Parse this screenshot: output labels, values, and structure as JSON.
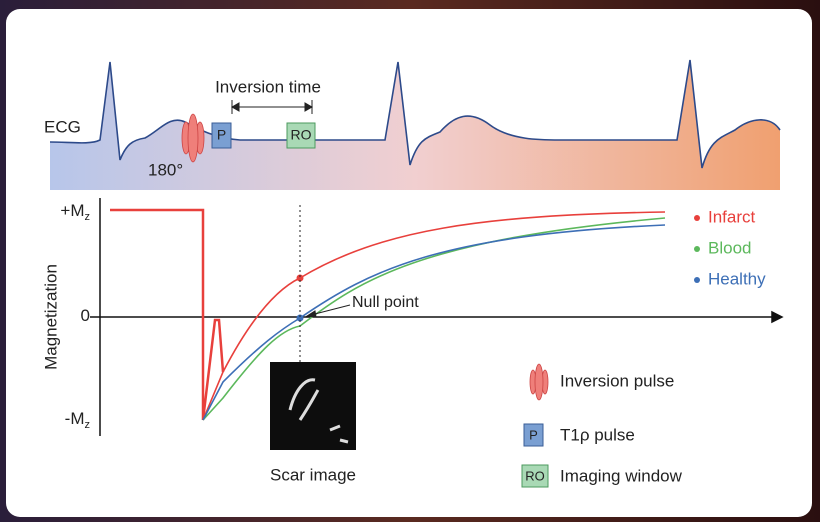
{
  "ecg": {
    "label": "ECG",
    "pulse_angle": "180°",
    "p_box": "P",
    "ro_box": "RO",
    "interval": "Inversion time"
  },
  "plot": {
    "y_label": "Magnetization",
    "y_ticks": [
      {
        "main": "+M",
        "sub": "z"
      },
      {
        "main": "0"
      },
      {
        "main": "-M",
        "sub": "z"
      }
    ],
    "null_point": "Null point",
    "series": [
      {
        "name": "Infarct",
        "color": "#e8403c"
      },
      {
        "name": "Blood",
        "color": "#5cb85c"
      },
      {
        "name": "Healthy",
        "color": "#3d6fb6"
      }
    ],
    "scar_image": "Scar image"
  },
  "legend": [
    {
      "label": "Inversion pulse"
    },
    {
      "symbol": "P",
      "label": "T1ρ pulse"
    },
    {
      "symbol": "RO",
      "label": "Imaging window"
    }
  ]
}
